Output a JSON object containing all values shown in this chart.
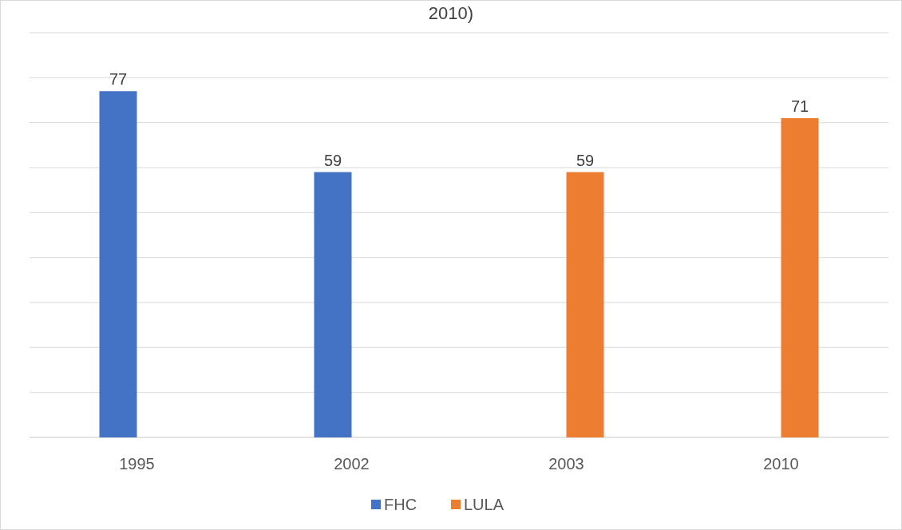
{
  "chart_data": {
    "type": "bar",
    "title": "2010)",
    "categories": [
      "1995",
      "2002",
      "2003",
      "2010"
    ],
    "series": [
      {
        "name": "FHC",
        "color": "#4472c4",
        "values": [
          77,
          59,
          null,
          null
        ]
      },
      {
        "name": "LULA",
        "color": "#ed7d31",
        "values": [
          null,
          null,
          59,
          71
        ]
      }
    ],
    "ylim": [
      0,
      90
    ],
    "yticks": [
      {
        "value": 0,
        "label": null
      },
      {
        "value": 10,
        "label": null
      },
      {
        "value": 20,
        "label": null
      },
      {
        "value": 30,
        "label": null
      },
      {
        "value": 40,
        "label": null
      },
      {
        "value": 50,
        "label": null
      },
      {
        "value": 60,
        "label": null
      },
      {
        "value": 70,
        "label": null
      },
      {
        "value": 80,
        "label": null
      },
      {
        "value": 90,
        "label": null
      }
    ],
    "grid": "y",
    "tick_labels": "x",
    "data_labels": true,
    "legend": "bottom"
  }
}
